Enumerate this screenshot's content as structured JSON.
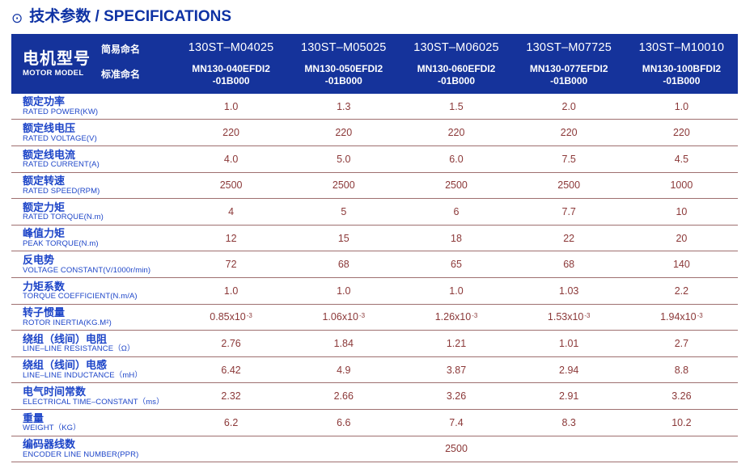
{
  "title": {
    "icon": "⊙",
    "text": "技术参数 / SPECIFICATIONS"
  },
  "header": {
    "motor_model_cn": "电机型号",
    "motor_model_en": "MOTOR MODEL",
    "simple_name_label": "简易命名",
    "standard_name_label": "标准命名",
    "columns": [
      {
        "simple_name": "130ST–M04025",
        "standard_name_line1": "MN130-040EFDI2",
        "standard_name_line2": "-01B000"
      },
      {
        "simple_name": "130ST–M05025",
        "standard_name_line1": "MN130-050EFDI2",
        "standard_name_line2": "-01B000"
      },
      {
        "simple_name": "130ST–M06025",
        "standard_name_line1": "MN130-060EFDI2",
        "standard_name_line2": "-01B000"
      },
      {
        "simple_name": "130ST–M07725",
        "standard_name_line1": "MN130-077EFDI2",
        "standard_name_line2": "-01B000"
      },
      {
        "simple_name": "130ST–M10010",
        "standard_name_line1": "MN130-100BFDI2",
        "standard_name_line2": "-01B000"
      }
    ]
  },
  "rows": [
    {
      "cn": "额定功率",
      "en": "RATED POWER(KW)",
      "values": [
        "1.0",
        "1.3",
        "1.5",
        "2.0",
        "1.0"
      ]
    },
    {
      "cn": "额定线电压",
      "en": "RATED VOLTAGE(V)",
      "values": [
        "220",
        "220",
        "220",
        "220",
        "220"
      ]
    },
    {
      "cn": "额定线电流",
      "en": "RATED CURRENT(A)",
      "values": [
        "4.0",
        "5.0",
        "6.0",
        "7.5",
        "4.5"
      ]
    },
    {
      "cn": "额定转速",
      "en": "RATED SPEED(RPM)",
      "values": [
        "2500",
        "2500",
        "2500",
        "2500",
        "1000"
      ]
    },
    {
      "cn": "额定力矩",
      "en": "RATED TORQUE(N.m)",
      "values": [
        "4",
        "5",
        "6",
        "7.7",
        "10"
      ]
    },
    {
      "cn": "峰值力矩",
      "en": "PEAK TORQUE(N.m)",
      "values": [
        "12",
        "15",
        "18",
        "22",
        "20"
      ]
    },
    {
      "cn": "反电势",
      "en": "VOLTAGE CONSTANT(V/1000r/min)",
      "values": [
        "72",
        "68",
        "65",
        "68",
        "140"
      ]
    },
    {
      "cn": "力矩系数",
      "en": "TORQUE COEFFICIENT(N.m/A)",
      "values": [
        "1.0",
        "1.0",
        "1.0",
        "1.03",
        "2.2"
      ]
    },
    {
      "cn": "转子惯量",
      "en": "ROTOR INERTIA(KG.M²)",
      "values": [
        {
          "base": "0.85x10",
          "sup": "-3"
        },
        {
          "base": "1.06x10",
          "sup": "-3"
        },
        {
          "base": "1.26x10",
          "sup": "-3"
        },
        {
          "base": "1.53x10",
          "sup": "-3"
        },
        {
          "base": "1.94x10",
          "sup": "-3"
        }
      ]
    },
    {
      "cn": "绕组（线间）电阻",
      "en": "LINE–LINE RESISTANCE（Ω）",
      "values": [
        "2.76",
        "1.84",
        "1.21",
        "1.01",
        "2.7"
      ]
    },
    {
      "cn": "绕组（线间）电感",
      "en": "LINE–LINE INDUCTANCE（mH）",
      "values": [
        "6.42",
        "4.9",
        "3.87",
        "2.94",
        "8.8"
      ]
    },
    {
      "cn": "电气时间常数",
      "en": "ELECTRICAL TIME–CONSTANT（ms）",
      "values": [
        "2.32",
        "2.66",
        "3.26",
        "2.91",
        "3.26"
      ]
    },
    {
      "cn": "重量",
      "en": "WEIGHT（KG）",
      "values": [
        "6.2",
        "6.6",
        "7.4",
        "8.3",
        "10.2"
      ]
    },
    {
      "cn": "编码器线数",
      "en": "ENCODER LINE NUMBER(PPR)",
      "merged_value": "2500"
    }
  ],
  "colors": {
    "header_bg": "#15339b",
    "title_text": "#0e32a4",
    "row_label_text": "#1d45c8",
    "value_text": "#8b3838",
    "divider": "#9e6f6f"
  }
}
